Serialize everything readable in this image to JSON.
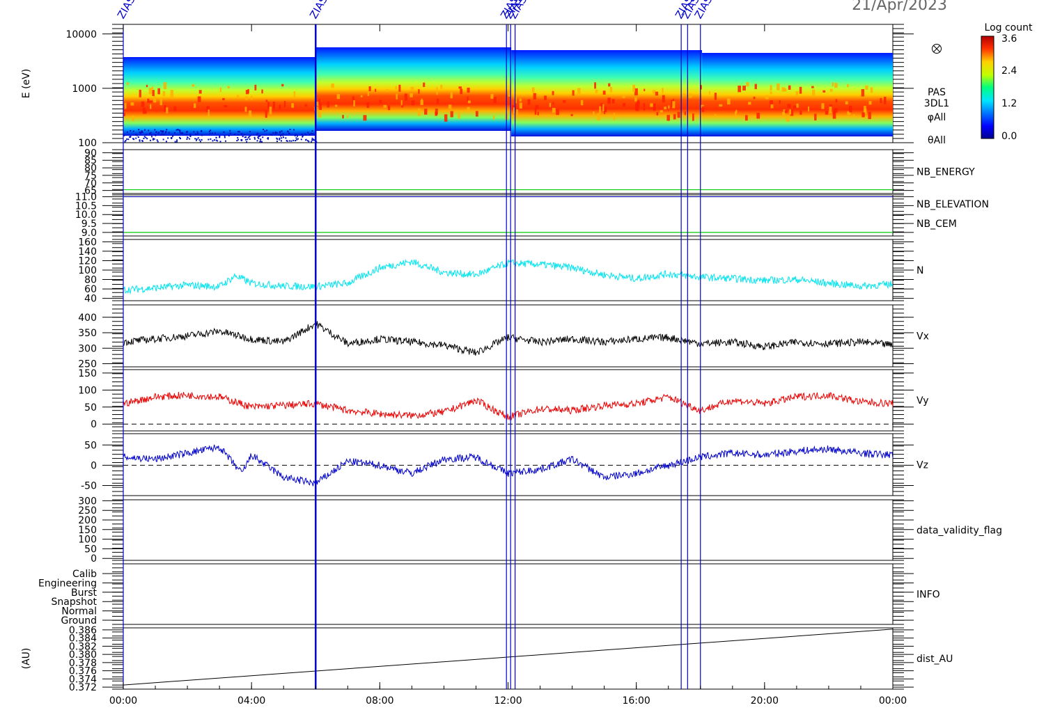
{
  "header": {
    "date": "21/Apr/2023"
  },
  "events": [
    {
      "label": "ZIAS",
      "hour": 0.0,
      "color": "#0000cc"
    },
    {
      "label": "ZIAS",
      "hour": 6.0,
      "color": "#0000cc"
    },
    {
      "label": "ZIAS",
      "hour": 11.95,
      "color": "#0000cc"
    },
    {
      "label": "ZIAS",
      "hour": 12.08,
      "color": "#0000cc"
    },
    {
      "label": "ZIAS",
      "hour": 12.22,
      "color": "#0000cc"
    },
    {
      "label": "ZIAS",
      "hour": 17.4,
      "color": "#0000cc"
    },
    {
      "label": "ZIAS",
      "hour": 17.6,
      "color": "#0000cc"
    },
    {
      "label": "ZIAS",
      "hour": 18.0,
      "color": "#0000cc"
    }
  ],
  "colorbar": {
    "title": "Log count",
    "ticks": [
      "3.6",
      "2.4",
      "1.2",
      "0.0"
    ]
  },
  "x_ticks": [
    "00:00",
    "04:00",
    "08:00",
    "12:00",
    "16:00",
    "20:00",
    "00:00"
  ],
  "chart_data": [
    {
      "type": "heatmap",
      "name_label": "",
      "ylabel": "E (eV)",
      "yscale": "log",
      "ylim": [
        100,
        15000
      ],
      "y_ticks": [
        "10000",
        "1000",
        "100"
      ],
      "side_labels": [
        "PAS",
        "3DL1",
        "φAll",
        "θAll"
      ],
      "peak_energy_eV": 600,
      "zlim": [
        0.0,
        3.6
      ]
    },
    {
      "type": "line",
      "ylim": [
        63,
        92
      ],
      "y_ticks": [
        "90",
        "85",
        "80",
        "75",
        "70",
        "65"
      ],
      "series": [
        {
          "name": "NB_ENERGY",
          "color": "#00cc00",
          "constant": 65.5
        }
      ]
    },
    {
      "type": "line",
      "ylim": [
        8.8,
        11.1
      ],
      "y_ticks": [
        "11.0",
        "10.5",
        "10.0",
        "9.5",
        "9.0"
      ],
      "series": [
        {
          "name": "NB_ELEVATION",
          "color": "#00cc00",
          "constant": 9.0
        },
        {
          "name": "NB_CEM",
          "color": "#0000aa",
          "constant": 11.0
        }
      ]
    },
    {
      "type": "line",
      "ylim": [
        35,
        165
      ],
      "y_ticks": [
        "160",
        "140",
        "120",
        "100",
        "80",
        "60",
        "40"
      ],
      "series": [
        {
          "name": "N",
          "color": "#00e5ee",
          "hours": [
            0,
            1,
            2,
            3,
            3.5,
            4,
            5,
            6,
            7,
            8,
            9,
            10,
            11,
            12,
            13,
            14,
            15,
            16,
            17,
            18,
            19,
            20,
            21,
            22,
            23,
            24
          ],
          "values": [
            58,
            62,
            68,
            65,
            88,
            72,
            66,
            65,
            72,
            105,
            118,
            95,
            90,
            115,
            112,
            105,
            90,
            82,
            92,
            85,
            82,
            78,
            80,
            72,
            66,
            70
          ]
        }
      ]
    },
    {
      "type": "line",
      "ylim": [
        240,
        440
      ],
      "y_ticks": [
        "400",
        "350",
        "300",
        "250"
      ],
      "series": [
        {
          "name": "Vx",
          "color": "#000000",
          "hours": [
            0,
            1,
            2,
            3,
            4,
            5,
            6,
            7,
            8,
            9,
            10,
            11,
            12,
            13,
            14,
            15,
            16,
            17,
            18,
            19,
            20,
            21,
            22,
            23,
            24
          ],
          "values": [
            320,
            330,
            340,
            355,
            330,
            320,
            380,
            315,
            330,
            320,
            310,
            285,
            335,
            320,
            330,
            320,
            330,
            335,
            315,
            320,
            305,
            320,
            315,
            320,
            310
          ]
        }
      ]
    },
    {
      "type": "line",
      "ylim": [
        -20,
        160
      ],
      "dashed_zero": true,
      "y_ticks": [
        "150",
        "100",
        "50",
        "0"
      ],
      "series": [
        {
          "name": "Vy",
          "color": "#ee0000",
          "hours": [
            0,
            1,
            2,
            3,
            4,
            5,
            6,
            7,
            8,
            9,
            10,
            11,
            12,
            13,
            14,
            15,
            16,
            17,
            18,
            19,
            20,
            21,
            22,
            23,
            24
          ],
          "values": [
            60,
            80,
            85,
            80,
            50,
            55,
            60,
            40,
            30,
            25,
            35,
            70,
            20,
            45,
            40,
            55,
            60,
            80,
            40,
            70,
            60,
            80,
            85,
            65,
            60
          ]
        }
      ]
    },
    {
      "type": "line",
      "ylim": [
        -75,
        78
      ],
      "dashed_zero": true,
      "y_ticks": [
        "50",
        "0",
        "-50"
      ],
      "series": [
        {
          "name": "Vz",
          "color": "#0000cc",
          "hours": [
            0,
            1,
            2,
            3,
            3.7,
            4,
            5,
            6,
            7,
            8,
            9,
            10,
            11,
            12,
            13,
            14,
            15,
            16,
            17,
            18,
            19,
            20,
            21,
            22,
            23,
            24
          ],
          "values": [
            20,
            15,
            30,
            45,
            -20,
            25,
            -30,
            -45,
            10,
            0,
            -20,
            15,
            20,
            -20,
            -10,
            15,
            -30,
            -20,
            0,
            20,
            30,
            25,
            35,
            40,
            30,
            25
          ]
        }
      ]
    },
    {
      "type": "line",
      "ylim": [
        -10,
        305
      ],
      "y_ticks": [
        "300",
        "250",
        "200",
        "150",
        "100",
        "50",
        "0"
      ],
      "series": [
        {
          "name": "data_validity_flag",
          "color": "#000000",
          "values": []
        }
      ]
    },
    {
      "type": "line",
      "y_ticks": [
        "Calib",
        "Engineering",
        "Burst",
        "Snapshot",
        "Normal",
        "Ground"
      ],
      "series": [
        {
          "name": "INFO",
          "color": "#000000",
          "values": []
        }
      ]
    },
    {
      "type": "line",
      "ylabel": "(AU)",
      "ylim": [
        0.3715,
        0.3865
      ],
      "y_ticks": [
        "0.386",
        "0.384",
        "0.382",
        "0.380",
        "0.378",
        "0.376",
        "0.374",
        "0.372"
      ],
      "series": [
        {
          "name": "dist_AU",
          "color": "#000000",
          "hours": [
            0,
            24
          ],
          "values": [
            0.3725,
            0.3862
          ]
        }
      ]
    }
  ]
}
